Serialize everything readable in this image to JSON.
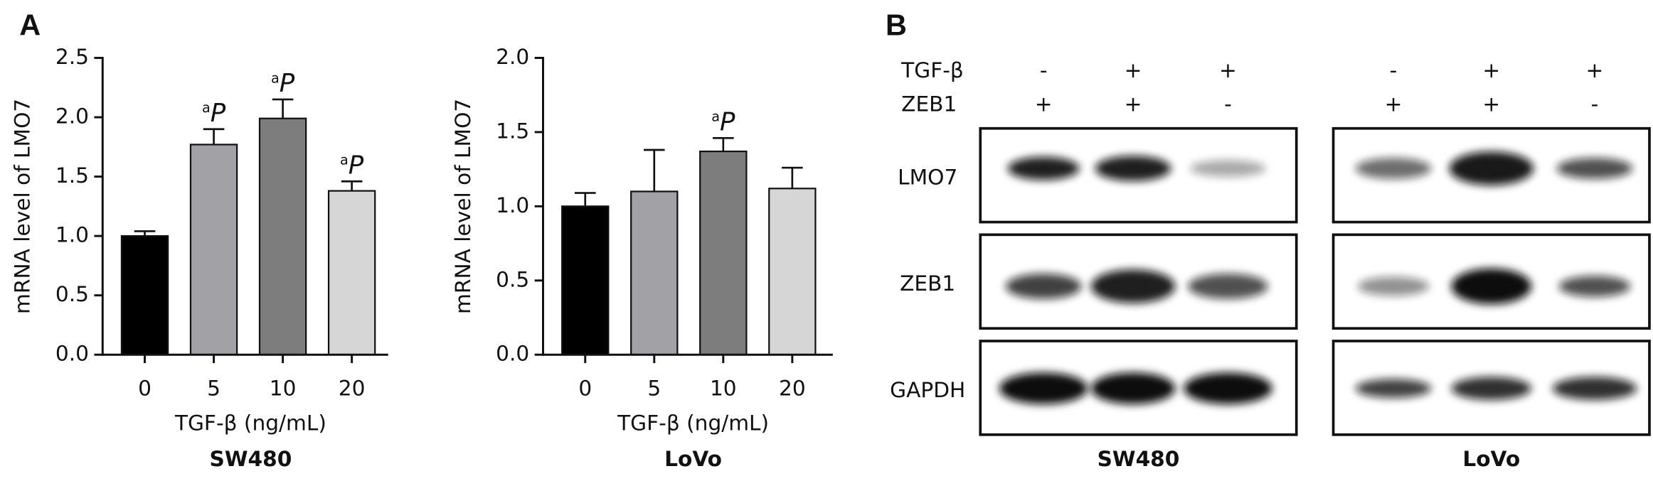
{
  "panel_labels": [
    "A",
    "B"
  ],
  "chart_data": [
    {
      "type": "bar",
      "subtitle": "SW480",
      "x_label": "TGF-β (ng/mL)",
      "y_label": "mRNA level of LMO7",
      "categories": [
        "0",
        "5",
        "10",
        "20"
      ],
      "values": [
        1.0,
        1.77,
        1.99,
        1.38
      ],
      "errors": [
        0.04,
        0.13,
        0.16,
        0.08
      ],
      "colors": [
        "#000000",
        "#a2a2a6",
        "#7d7d7d",
        "#d6d6d6"
      ],
      "annotations": [
        null,
        {
          "sup": "a",
          "text": "P"
        },
        {
          "sup": "a",
          "text": "P"
        },
        {
          "sup": "a",
          "text": "P"
        }
      ],
      "ylim": [
        0,
        2.5
      ],
      "yticks": [
        {
          "value": 0,
          "label": "0.0"
        },
        0.5,
        {
          "value": 1,
          "label": "1.0"
        },
        1.5,
        {
          "value": 2,
          "label": "2.0"
        },
        2.5
      ]
    },
    {
      "type": "bar",
      "subtitle": "LoVo",
      "x_label": "TGF-β (ng/mL)",
      "y_label": "mRNA level of LMO7",
      "categories": [
        "0",
        "5",
        "10",
        "20"
      ],
      "values": [
        1.0,
        1.1,
        1.37,
        1.12
      ],
      "errors": [
        0.09,
        0.28,
        0.09,
        0.14
      ],
      "colors": [
        "#000000",
        "#a2a2a6",
        "#7d7d7d",
        "#d6d6d6"
      ],
      "annotations": [
        null,
        null,
        {
          "sup": "a",
          "text": "P"
        },
        null
      ],
      "ylim": [
        0,
        2.0
      ],
      "yticks": [
        {
          "value": 0,
          "label": "0.0"
        },
        0.5,
        {
          "value": 1,
          "label": "1.0"
        },
        1.5,
        {
          "value": 2,
          "label": "2.0"
        }
      ]
    }
  ],
  "western_blot": {
    "conditions": [
      {
        "label": "TGF-β",
        "lanes": [
          [
            "-",
            "+",
            "+"
          ],
          [
            "-",
            "+",
            "+"
          ]
        ]
      },
      {
        "label": "ZEB1",
        "lanes": [
          [
            "+",
            "+",
            "-"
          ],
          [
            "+",
            "+",
            "-"
          ]
        ]
      }
    ],
    "rows": [
      "LMO7",
      "ZEB1",
      "GAPDH"
    ],
    "cell_lines": [
      "SW480",
      "LoVo"
    ]
  }
}
